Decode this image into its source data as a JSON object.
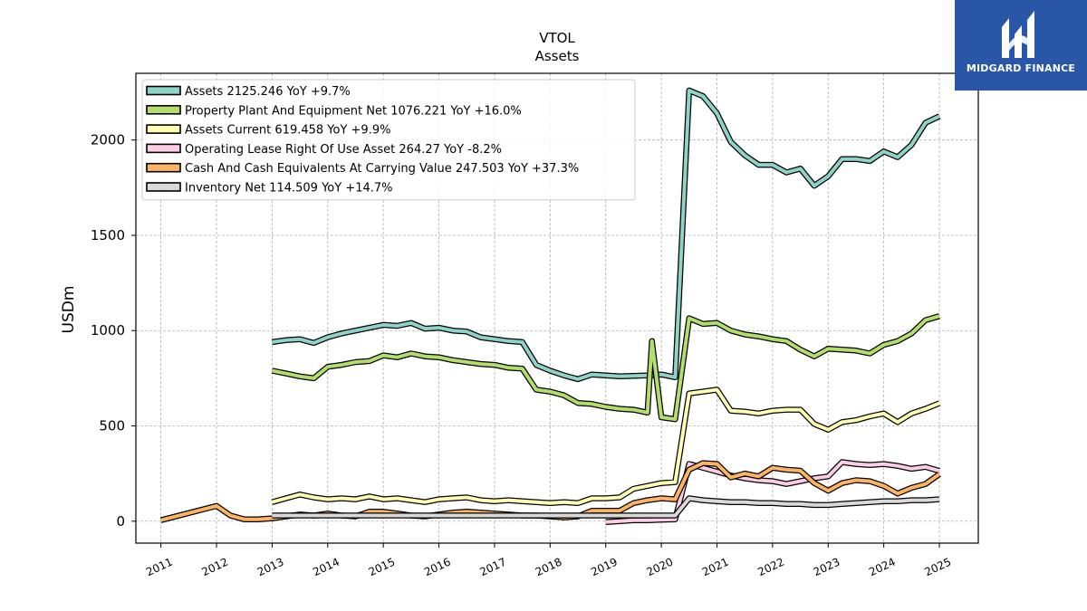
{
  "brand": {
    "name": "MIDGARD FINANCE",
    "bg": "#2a56a8"
  },
  "chart_data": {
    "type": "line",
    "title": "VTOL",
    "subtitle": "Assets",
    "xlabel": "",
    "ylabel": "USDm",
    "xlim": [
      2010.55,
      2025.7
    ],
    "ylim": [
      -115,
      2350
    ],
    "yticks": [
      0,
      500,
      1000,
      1500,
      2000
    ],
    "xticks": [
      "2011",
      "2012",
      "2013",
      "2014",
      "2015",
      "2016",
      "2017",
      "2018",
      "2019",
      "2020",
      "2021",
      "2022",
      "2023",
      "2024",
      "2025"
    ],
    "grid": true,
    "legend_position": "top-left",
    "series": [
      {
        "name": "Assets  2125.246 YoY +9.7%",
        "color": "#8dd3c7",
        "x": [
          2013.0,
          2013.25,
          2013.5,
          2013.75,
          2014.0,
          2014.25,
          2014.5,
          2014.75,
          2015.0,
          2015.25,
          2015.5,
          2015.75,
          2016.0,
          2016.25,
          2016.5,
          2016.75,
          2017.0,
          2017.25,
          2017.5,
          2017.75,
          2018.0,
          2018.25,
          2018.5,
          2018.75,
          2019.0,
          2019.25,
          2019.5,
          2019.75,
          2020.0,
          2020.25,
          2020.5,
          2020.75,
          2021.0,
          2021.25,
          2021.5,
          2021.75,
          2022.0,
          2022.25,
          2022.5,
          2022.75,
          2023.0,
          2023.25,
          2023.5,
          2023.75,
          2024.0,
          2024.25,
          2024.5,
          2024.75,
          2025.0
        ],
        "y": [
          940,
          950,
          955,
          935,
          965,
          985,
          1000,
          1015,
          1030,
          1025,
          1040,
          1010,
          1015,
          1000,
          995,
          965,
          955,
          945,
          940,
          820,
          790,
          765,
          745,
          770,
          765,
          760,
          762,
          765,
          770,
          755,
          2260,
          2230,
          2140,
          1990,
          1920,
          1870,
          1870,
          1830,
          1850,
          1760,
          1810,
          1900,
          1900,
          1890,
          1940,
          1910,
          1975,
          2090,
          2125
        ]
      },
      {
        "name": "Property Plant And Equipment Net  1076.221 YoY +16.0%",
        "color": "#b3de69",
        "x": [
          2013.0,
          2013.25,
          2013.5,
          2013.75,
          2014.0,
          2014.25,
          2014.5,
          2014.75,
          2015.0,
          2015.25,
          2015.5,
          2015.75,
          2016.0,
          2016.25,
          2016.5,
          2016.75,
          2017.0,
          2017.25,
          2017.5,
          2017.75,
          2018.0,
          2018.25,
          2018.5,
          2018.75,
          2019.0,
          2019.25,
          2019.5,
          2019.75,
          2019.83,
          2020.0,
          2020.25,
          2020.5,
          2020.75,
          2021.0,
          2021.25,
          2021.5,
          2021.75,
          2022.0,
          2022.25,
          2022.5,
          2022.75,
          2023.0,
          2023.25,
          2023.5,
          2023.75,
          2024.0,
          2024.25,
          2024.5,
          2024.75,
          2025.0
        ],
        "y": [
          790,
          775,
          760,
          750,
          810,
          820,
          835,
          840,
          870,
          860,
          880,
          865,
          860,
          845,
          835,
          825,
          820,
          805,
          800,
          690,
          680,
          660,
          620,
          615,
          600,
          590,
          585,
          570,
          945,
          545,
          535,
          1065,
          1035,
          1040,
          1000,
          980,
          970,
          955,
          945,
          900,
          865,
          905,
          900,
          895,
          880,
          925,
          945,
          985,
          1055,
          1076
        ]
      },
      {
        "name": "Assets Current  619.458 YoY +9.9%",
        "color": "#ffffb3",
        "x": [
          2013.0,
          2013.25,
          2013.5,
          2013.75,
          2014.0,
          2014.25,
          2014.5,
          2014.75,
          2015.0,
          2015.25,
          2015.5,
          2015.75,
          2016.0,
          2016.25,
          2016.5,
          2016.75,
          2017.0,
          2017.25,
          2017.5,
          2017.75,
          2018.0,
          2018.25,
          2018.5,
          2018.75,
          2019.0,
          2019.25,
          2019.5,
          2019.75,
          2020.0,
          2020.25,
          2020.5,
          2020.75,
          2021.0,
          2021.25,
          2021.5,
          2021.75,
          2022.0,
          2022.25,
          2022.5,
          2022.75,
          2023.0,
          2023.25,
          2023.5,
          2023.75,
          2024.0,
          2024.25,
          2024.5,
          2024.75,
          2025.0
        ],
        "y": [
          100,
          120,
          140,
          125,
          115,
          120,
          115,
          130,
          115,
          120,
          110,
          100,
          115,
          120,
          125,
          110,
          105,
          110,
          105,
          100,
          95,
          100,
          95,
          120,
          120,
          125,
          170,
          185,
          200,
          205,
          670,
          680,
          690,
          580,
          575,
          565,
          580,
          585,
          585,
          510,
          480,
          520,
          530,
          550,
          565,
          520,
          565,
          590,
          619
        ]
      },
      {
        "name": "Operating Lease Right Of Use Asset  264.27 YoY -8.2%",
        "color": "#fccde5",
        "x": [
          2019.0,
          2019.25,
          2019.5,
          2019.75,
          2020.0,
          2020.25,
          2020.5,
          2020.75,
          2021.0,
          2021.25,
          2021.5,
          2021.75,
          2022.0,
          2022.25,
          2022.5,
          2022.75,
          2023.0,
          2023.25,
          2023.5,
          2023.75,
          2024.0,
          2024.25,
          2024.5,
          2024.75,
          2025.0
        ],
        "y": [
          -5,
          0,
          5,
          5,
          8,
          10,
          300,
          280,
          260,
          240,
          225,
          215,
          210,
          195,
          210,
          225,
          235,
          310,
          300,
          295,
          300,
          290,
          275,
          285,
          264
        ]
      },
      {
        "name": "Cash And Cash Equivalents At Carrying Value  247.503 YoY +37.3%",
        "color": "#fdb462",
        "x": [
          2011.0,
          2012.0,
          2012.25,
          2012.5,
          2012.75,
          2013.0,
          2013.25,
          2013.5,
          2013.75,
          2014.0,
          2014.25,
          2014.5,
          2014.75,
          2015.0,
          2015.25,
          2015.5,
          2015.75,
          2016.0,
          2016.25,
          2016.5,
          2016.75,
          2017.0,
          2017.25,
          2017.5,
          2017.75,
          2018.0,
          2018.25,
          2018.5,
          2018.75,
          2019.0,
          2019.25,
          2019.5,
          2019.75,
          2020.0,
          2020.25,
          2020.5,
          2020.75,
          2021.0,
          2021.25,
          2021.5,
          2021.75,
          2022.0,
          2022.25,
          2022.5,
          2022.75,
          2023.0,
          2023.25,
          2023.5,
          2023.75,
          2024.0,
          2024.25,
          2024.5,
          2024.75,
          2025.0
        ],
        "y": [
          5,
          80,
          30,
          10,
          10,
          15,
          25,
          35,
          30,
          40,
          30,
          25,
          50,
          50,
          40,
          30,
          25,
          35,
          45,
          50,
          45,
          40,
          35,
          30,
          30,
          25,
          20,
          25,
          55,
          55,
          55,
          95,
          110,
          120,
          115,
          270,
          305,
          300,
          230,
          250,
          235,
          280,
          270,
          265,
          200,
          160,
          200,
          215,
          210,
          185,
          145,
          175,
          195,
          247
        ]
      },
      {
        "name": "Inventory Net  114.509 YoY +14.7%",
        "color": "#d9d9d9",
        "x": [
          2013.0,
          2013.25,
          2013.5,
          2013.75,
          2014.0,
          2014.25,
          2014.5,
          2014.75,
          2015.0,
          2015.25,
          2015.5,
          2015.75,
          2016.0,
          2016.25,
          2016.5,
          2016.75,
          2017.0,
          2017.25,
          2017.5,
          2017.75,
          2018.0,
          2018.25,
          2018.5,
          2018.75,
          2019.0,
          2019.25,
          2019.5,
          2019.75,
          2020.0,
          2020.25,
          2020.5,
          2020.75,
          2021.0,
          2021.25,
          2021.5,
          2021.75,
          2022.0,
          2022.25,
          2022.5,
          2022.75,
          2023.0,
          2023.25,
          2023.5,
          2023.75,
          2024.0,
          2024.25,
          2024.5,
          2024.75,
          2025.0
        ],
        "y": [
          30,
          30,
          30,
          30,
          30,
          30,
          30,
          30,
          30,
          30,
          30,
          30,
          30,
          30,
          30,
          30,
          30,
          30,
          30,
          30,
          30,
          30,
          30,
          30,
          30,
          30,
          30,
          30,
          30,
          30,
          120,
          110,
          105,
          100,
          100,
          95,
          95,
          90,
          90,
          85,
          85,
          90,
          95,
          100,
          105,
          105,
          110,
          110,
          115
        ]
      }
    ]
  }
}
